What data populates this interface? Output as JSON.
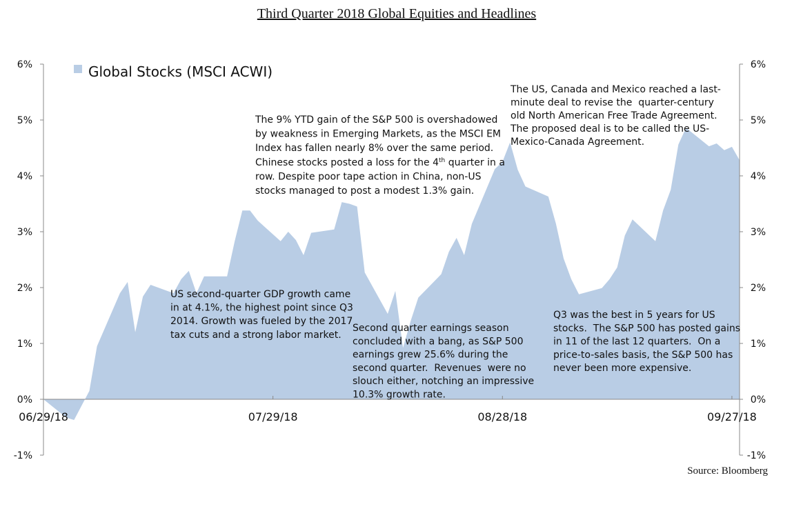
{
  "chart_data": {
    "type": "area",
    "title": "Third Quarter 2018 Global Equities and Headlines",
    "source": "Source: Bloomberg",
    "x": [
      "06/29/18",
      "07/02/18",
      "07/03/18",
      "07/05/18",
      "07/06/18",
      "07/09/18",
      "07/10/18",
      "07/11/18",
      "07/12/18",
      "07/13/18",
      "07/16/18",
      "07/17/18",
      "07/18/18",
      "07/19/18",
      "07/20/18",
      "07/23/18",
      "07/24/18",
      "07/25/18",
      "07/26/18",
      "07/27/18",
      "07/30/18",
      "07/31/18",
      "08/01/18",
      "08/02/18",
      "08/03/18",
      "08/06/18",
      "08/07/18",
      "08/08/18",
      "08/09/18",
      "08/10/18",
      "08/13/18",
      "08/14/18",
      "08/15/18",
      "08/16/18",
      "08/17/18",
      "08/20/18",
      "08/21/18",
      "08/22/18",
      "08/23/18",
      "08/24/18",
      "08/27/18",
      "08/28/18",
      "08/29/18",
      "08/30/18",
      "08/31/18",
      "09/03/18",
      "09/04/18",
      "09/05/18",
      "09/06/18",
      "09/07/18",
      "09/10/18",
      "09/11/18",
      "09/12/18",
      "09/13/18",
      "09/14/18",
      "09/17/18",
      "09/18/18",
      "09/19/18",
      "09/20/18",
      "09/21/18",
      "09/24/18",
      "09/25/18",
      "09/26/18",
      "09/27/18",
      "09/28/18"
    ],
    "series": [
      {
        "name": "Global Stocks (MSCI ACWI)",
        "color": "#b9cde5",
        "values": [
          0,
          -0.33,
          -0.37,
          0.15,
          0.95,
          1.9,
          2.1,
          1.2,
          1.84,
          2.05,
          1.9,
          2.15,
          2.3,
          1.9,
          2.2,
          2.2,
          2.83,
          3.38,
          3.38,
          3.2,
          2.83,
          3.0,
          2.85,
          2.58,
          2.98,
          3.04,
          3.53,
          3.5,
          3.45,
          2.27,
          1.53,
          1.94,
          0.92,
          1.4,
          1.82,
          2.24,
          2.64,
          2.89,
          2.58,
          3.14,
          4.12,
          4.25,
          4.6,
          4.11,
          3.81,
          3.63,
          3.14,
          2.52,
          2.15,
          1.88,
          1.99,
          2.15,
          2.36,
          2.93,
          3.22,
          2.83,
          3.38,
          3.75,
          4.56,
          4.86,
          4.53,
          4.58,
          4.46,
          4.52,
          4.28
        ]
      }
    ],
    "xlim": [
      "06/29/18",
      "09/28/18"
    ],
    "xticks": [
      "06/29/18",
      "07/29/18",
      "08/28/18",
      "09/27/18"
    ],
    "ylim": [
      -1,
      6
    ],
    "yticks": [
      {
        "value": -1,
        "label": "-1%"
      },
      {
        "value": 0,
        "label": "0%"
      },
      {
        "value": 1,
        "label": "1%"
      },
      {
        "value": 2,
        "label": "2%"
      },
      {
        "value": 3,
        "label": "3%"
      },
      {
        "value": 4,
        "label": "4%"
      },
      {
        "value": 5,
        "label": "5%"
      },
      {
        "value": 6,
        "label": "6%"
      }
    ],
    "y2lim": [
      -1,
      6
    ],
    "y2ticks": [
      {
        "value": -1,
        "label": "-1%"
      },
      {
        "value": 0,
        "label": "0%"
      },
      {
        "value": 1,
        "label": "1%"
      },
      {
        "value": 2,
        "label": "2%"
      },
      {
        "value": 3,
        "label": "3%"
      },
      {
        "value": 4,
        "label": "4%"
      },
      {
        "value": 5,
        "label": "5%"
      },
      {
        "value": 6,
        "label": "6%"
      }
    ],
    "legend": "top-left",
    "annotations": [
      {
        "lines": [
          "US second-quarter GDP growth came",
          "in at 4.1%, the highest point since Q3",
          "2014. Growth was fueled by the 2017",
          "tax cuts and a strong labor market."
        ]
      },
      {
        "lines": [
          "The 9% YTD gain of the S&P 500 is overshadowed",
          "by weakness in Emerging Markets, as the MSCI EM",
          "Index has fallen nearly 8% over the same period.",
          [
            "Chinese stocks posted a loss for the 4",
            "th",
            " quarter in a"
          ],
          "row. Despite poor tape action in China, non-US",
          "stocks managed to post a modest 1.3% gain."
        ]
      },
      {
        "lines": [
          "Second quarter earnings season",
          "concluded with a bang, as S&P 500",
          "earnings grew 25.6% during the",
          "second quarter.  Revenues  were no",
          "slouch either, notching an impressive",
          "10.3% growth rate."
        ]
      },
      {
        "lines": [
          "The US, Canada and Mexico reached a last-",
          "minute deal to revise the  quarter-century",
          "old North American Free Trade Agreement.",
          "The proposed deal is to be called the US-",
          "Mexico-Canada Agreement."
        ]
      },
      {
        "lines": [
          "Q3 was the best in 5 years for US",
          "stocks.  The S&P 500 has posted gains",
          "in 11 of the last 12 quarters.  On a",
          "price-to-sales basis, the S&P 500 has",
          "never been more expensive."
        ]
      }
    ]
  }
}
